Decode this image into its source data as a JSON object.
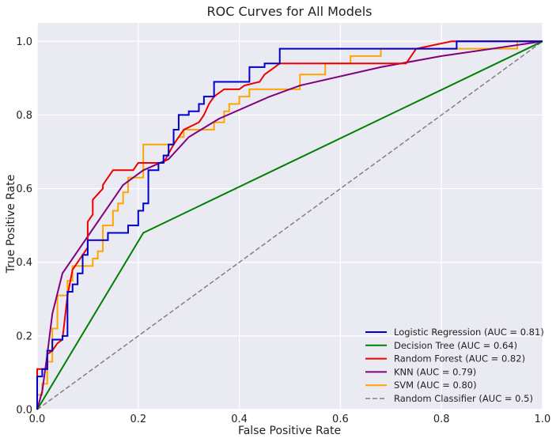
{
  "chart_data": {
    "type": "line",
    "title": "ROC Curves for All Models",
    "xlabel": "False Positive Rate",
    "ylabel": "True Positive Rate",
    "xlim": [
      0.0,
      1.0
    ],
    "ylim": [
      0.0,
      1.05
    ],
    "xticks": [
      "0.0",
      "0.2",
      "0.4",
      "0.6",
      "0.8",
      "1.0"
    ],
    "yticks": [
      "0.0",
      "0.2",
      "0.4",
      "0.6",
      "0.8",
      "1.0"
    ],
    "xtick_values": [
      0,
      0.2,
      0.4,
      0.6,
      0.8,
      1.0
    ],
    "ytick_values": [
      0,
      0.2,
      0.4,
      0.6,
      0.8,
      1.0
    ],
    "grid": true,
    "background": "#eaeaf2",
    "legend_position": "lower-right",
    "series": [
      {
        "name": "Logistic Regression (AUC = 0.81)",
        "color": "#0000cc",
        "dash": "solid",
        "points": [
          [
            0,
            0
          ],
          [
            0,
            0.09
          ],
          [
            0.01,
            0.09
          ],
          [
            0.01,
            0.11
          ],
          [
            0.02,
            0.11
          ],
          [
            0.02,
            0.16
          ],
          [
            0.03,
            0.16
          ],
          [
            0.03,
            0.19
          ],
          [
            0.05,
            0.19
          ],
          [
            0.05,
            0.2
          ],
          [
            0.06,
            0.2
          ],
          [
            0.06,
            0.32
          ],
          [
            0.07,
            0.32
          ],
          [
            0.07,
            0.34
          ],
          [
            0.08,
            0.34
          ],
          [
            0.08,
            0.37
          ],
          [
            0.09,
            0.37
          ],
          [
            0.09,
            0.42
          ],
          [
            0.1,
            0.42
          ],
          [
            0.1,
            0.46
          ],
          [
            0.14,
            0.46
          ],
          [
            0.14,
            0.48
          ],
          [
            0.18,
            0.48
          ],
          [
            0.18,
            0.5
          ],
          [
            0.2,
            0.5
          ],
          [
            0.2,
            0.54
          ],
          [
            0.21,
            0.54
          ],
          [
            0.21,
            0.56
          ],
          [
            0.22,
            0.56
          ],
          [
            0.22,
            0.65
          ],
          [
            0.24,
            0.65
          ],
          [
            0.24,
            0.67
          ],
          [
            0.25,
            0.67
          ],
          [
            0.25,
            0.69
          ],
          [
            0.26,
            0.69
          ],
          [
            0.26,
            0.72
          ],
          [
            0.27,
            0.72
          ],
          [
            0.27,
            0.76
          ],
          [
            0.28,
            0.76
          ],
          [
            0.28,
            0.8
          ],
          [
            0.3,
            0.8
          ],
          [
            0.3,
            0.81
          ],
          [
            0.32,
            0.81
          ],
          [
            0.32,
            0.83
          ],
          [
            0.33,
            0.83
          ],
          [
            0.33,
            0.85
          ],
          [
            0.35,
            0.85
          ],
          [
            0.35,
            0.89
          ],
          [
            0.42,
            0.89
          ],
          [
            0.42,
            0.93
          ],
          [
            0.45,
            0.93
          ],
          [
            0.45,
            0.94
          ],
          [
            0.48,
            0.94
          ],
          [
            0.48,
            0.98
          ],
          [
            0.83,
            0.98
          ],
          [
            0.83,
            1.0
          ],
          [
            1.0,
            1.0
          ]
        ]
      },
      {
        "name": "Decision Tree (AUC = 0.64)",
        "color": "#008000",
        "dash": "solid",
        "points": [
          [
            0,
            0
          ],
          [
            0.21,
            0.48
          ],
          [
            1.0,
            1.0
          ]
        ]
      },
      {
        "name": "Random Forest (AUC = 0.82)",
        "color": "#ee0000",
        "dash": "solid",
        "points": [
          [
            0,
            0
          ],
          [
            0,
            0.11
          ],
          [
            0.02,
            0.11
          ],
          [
            0.02,
            0.15
          ],
          [
            0.03,
            0.16
          ],
          [
            0.04,
            0.18
          ],
          [
            0.05,
            0.19
          ],
          [
            0.06,
            0.31
          ],
          [
            0.07,
            0.38
          ],
          [
            0.08,
            0.4
          ],
          [
            0.09,
            0.42
          ],
          [
            0.1,
            0.44
          ],
          [
            0.1,
            0.51
          ],
          [
            0.11,
            0.53
          ],
          [
            0.11,
            0.57
          ],
          [
            0.13,
            0.6
          ],
          [
            0.13,
            0.61
          ],
          [
            0.14,
            0.63
          ],
          [
            0.15,
            0.65
          ],
          [
            0.19,
            0.65
          ],
          [
            0.2,
            0.67
          ],
          [
            0.25,
            0.67
          ],
          [
            0.27,
            0.72
          ],
          [
            0.29,
            0.76
          ],
          [
            0.32,
            0.78
          ],
          [
            0.33,
            0.8
          ],
          [
            0.34,
            0.83
          ],
          [
            0.35,
            0.85
          ],
          [
            0.36,
            0.86
          ],
          [
            0.37,
            0.87
          ],
          [
            0.4,
            0.87
          ],
          [
            0.41,
            0.88
          ],
          [
            0.44,
            0.89
          ],
          [
            0.45,
            0.91
          ],
          [
            0.47,
            0.93
          ],
          [
            0.48,
            0.94
          ],
          [
            0.73,
            0.94
          ],
          [
            0.75,
            0.98
          ],
          [
            0.82,
            1.0
          ],
          [
            1.0,
            1.0
          ]
        ]
      },
      {
        "name": "KNN (AUC = 0.79)",
        "color": "#800080",
        "dash": "solid",
        "points": [
          [
            0,
            0
          ],
          [
            0.01,
            0.05
          ],
          [
            0.02,
            0.15
          ],
          [
            0.03,
            0.26
          ],
          [
            0.05,
            0.37
          ],
          [
            0.1,
            0.47
          ],
          [
            0.17,
            0.61
          ],
          [
            0.21,
            0.65
          ],
          [
            0.26,
            0.68
          ],
          [
            0.3,
            0.74
          ],
          [
            0.36,
            0.79
          ],
          [
            0.46,
            0.85
          ],
          [
            0.52,
            0.88
          ],
          [
            0.68,
            0.93
          ],
          [
            0.8,
            0.96
          ],
          [
            1.0,
            1.0
          ]
        ]
      },
      {
        "name": "SVM (AUC = 0.80)",
        "color": "#ffa500",
        "dash": "solid",
        "points": [
          [
            0,
            0
          ],
          [
            0,
            0.04
          ],
          [
            0.01,
            0.04
          ],
          [
            0.01,
            0.07
          ],
          [
            0.02,
            0.07
          ],
          [
            0.02,
            0.13
          ],
          [
            0.03,
            0.13
          ],
          [
            0.03,
            0.22
          ],
          [
            0.04,
            0.22
          ],
          [
            0.04,
            0.31
          ],
          [
            0.06,
            0.31
          ],
          [
            0.06,
            0.35
          ],
          [
            0.07,
            0.35
          ],
          [
            0.07,
            0.39
          ],
          [
            0.11,
            0.39
          ],
          [
            0.11,
            0.41
          ],
          [
            0.12,
            0.41
          ],
          [
            0.12,
            0.43
          ],
          [
            0.13,
            0.43
          ],
          [
            0.13,
            0.5
          ],
          [
            0.15,
            0.5
          ],
          [
            0.15,
            0.54
          ],
          [
            0.16,
            0.54
          ],
          [
            0.16,
            0.56
          ],
          [
            0.17,
            0.56
          ],
          [
            0.17,
            0.59
          ],
          [
            0.18,
            0.59
          ],
          [
            0.18,
            0.63
          ],
          [
            0.21,
            0.63
          ],
          [
            0.21,
            0.72
          ],
          [
            0.27,
            0.72
          ],
          [
            0.28,
            0.74
          ],
          [
            0.29,
            0.74
          ],
          [
            0.29,
            0.76
          ],
          [
            0.35,
            0.76
          ],
          [
            0.35,
            0.78
          ],
          [
            0.37,
            0.78
          ],
          [
            0.37,
            0.81
          ],
          [
            0.38,
            0.81
          ],
          [
            0.38,
            0.83
          ],
          [
            0.4,
            0.83
          ],
          [
            0.4,
            0.85
          ],
          [
            0.42,
            0.85
          ],
          [
            0.42,
            0.87
          ],
          [
            0.52,
            0.87
          ],
          [
            0.52,
            0.91
          ],
          [
            0.57,
            0.91
          ],
          [
            0.57,
            0.94
          ],
          [
            0.62,
            0.94
          ],
          [
            0.62,
            0.96
          ],
          [
            0.68,
            0.96
          ],
          [
            0.68,
            0.98
          ],
          [
            0.95,
            0.98
          ],
          [
            0.95,
            1.0
          ],
          [
            1.0,
            1.0
          ]
        ]
      },
      {
        "name": "Random Classifier (AUC = 0.5)",
        "color": "#808080",
        "dash": "dashed",
        "points": [
          [
            0,
            0
          ],
          [
            1.0,
            1.0
          ]
        ]
      }
    ]
  }
}
